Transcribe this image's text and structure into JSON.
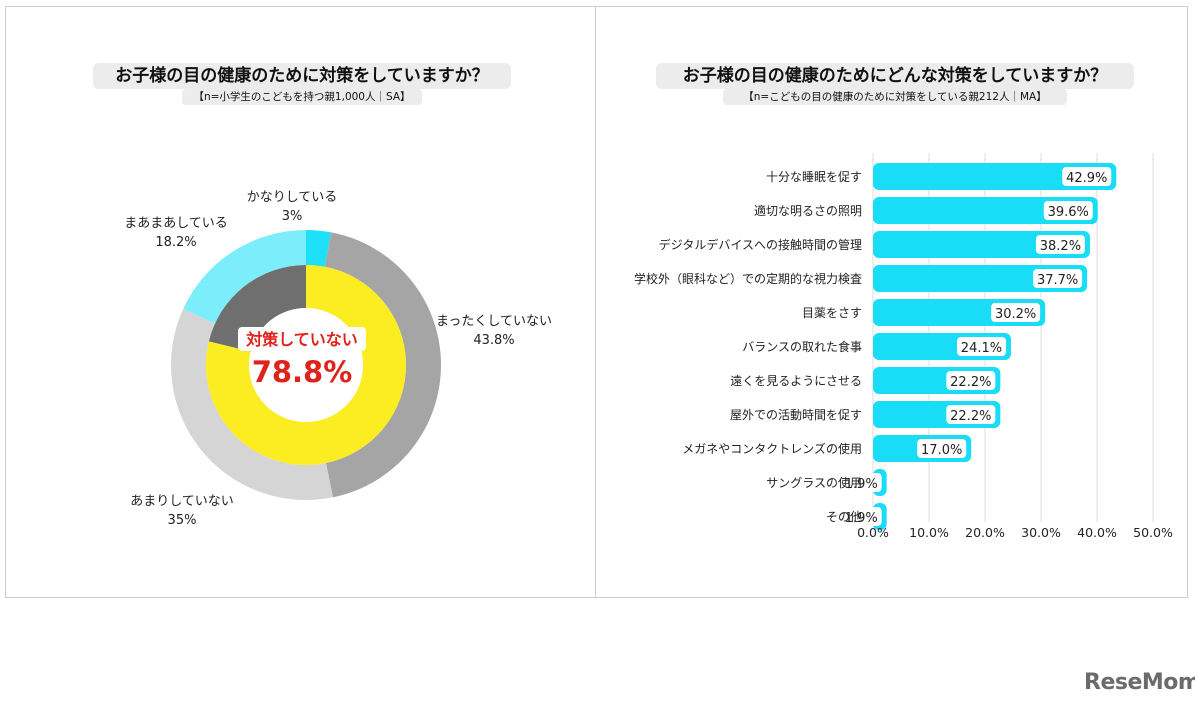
{
  "left": {
    "title": "お子様の目の健康のために対策をしていますか？",
    "subtitle": "【n=小学生のこどもを持つ親1,000人｜SA】",
    "center_label": "対策していない",
    "center_value": "78.8%"
  },
  "right": {
    "title": "お子様の目の健康のためにどんな対策をしていますか？",
    "subtitle": "【n=こどもの目の健康のために対策をしている親212人｜MA】"
  },
  "logo": "ReseMom",
  "colors": {
    "outer_kanari": "#1ee0f7",
    "outer_mattaku": "#a5a5a5",
    "outer_amari": "#d5d5d5",
    "outer_maamaa": "#7ceefb",
    "inner_not": "#fcec22",
    "inner_do": "#6f6f6f",
    "bar": "#19dcf7",
    "center_text": "#e0231a"
  },
  "chart_data": [
    {
      "type": "pie",
      "slices": [
        {
          "label": "かなりしている",
          "value": 3,
          "display": "3%"
        },
        {
          "label": "まったくしていない",
          "value": 43.8,
          "display": "43.8%"
        },
        {
          "label": "あまりしていない",
          "value": 35,
          "display": "35%"
        },
        {
          "label": "まあまあしている",
          "value": 18.2,
          "display": "18.2%"
        }
      ],
      "inner_ring": [
        {
          "label": "対策していない",
          "value": 78.8
        },
        {
          "label": "",
          "value": 21.2
        }
      ]
    },
    {
      "type": "bar",
      "orientation": "horizontal",
      "categories": [
        "十分な睡眠を促す",
        "適切な明るさの照明",
        "デジタルデバイスへの接触時間の管理",
        "学校外（眼科など）での定期的な視力検査",
        "目薬をさす",
        "バランスの取れた食事",
        "遠くを見るようにさせる",
        "屋外での活動時間を促す",
        "メガネやコンタクトレンズの使用",
        "サングラスの使用",
        "その他"
      ],
      "values": [
        42.9,
        39.6,
        38.2,
        37.7,
        30.2,
        24.1,
        22.2,
        22.2,
        17.0,
        1.9,
        1.9
      ],
      "value_labels": [
        "42.9%",
        "39.6%",
        "38.2%",
        "37.7%",
        "30.2%",
        "24.1%",
        "22.2%",
        "22.2%",
        "17.0%",
        "1.9%",
        "1.9%"
      ],
      "xlim": [
        0,
        50
      ],
      "ticks": [
        "0.0%",
        "10.0%",
        "20.0%",
        "30.0%",
        "40.0%",
        "50.0%"
      ],
      "grid": true
    }
  ]
}
